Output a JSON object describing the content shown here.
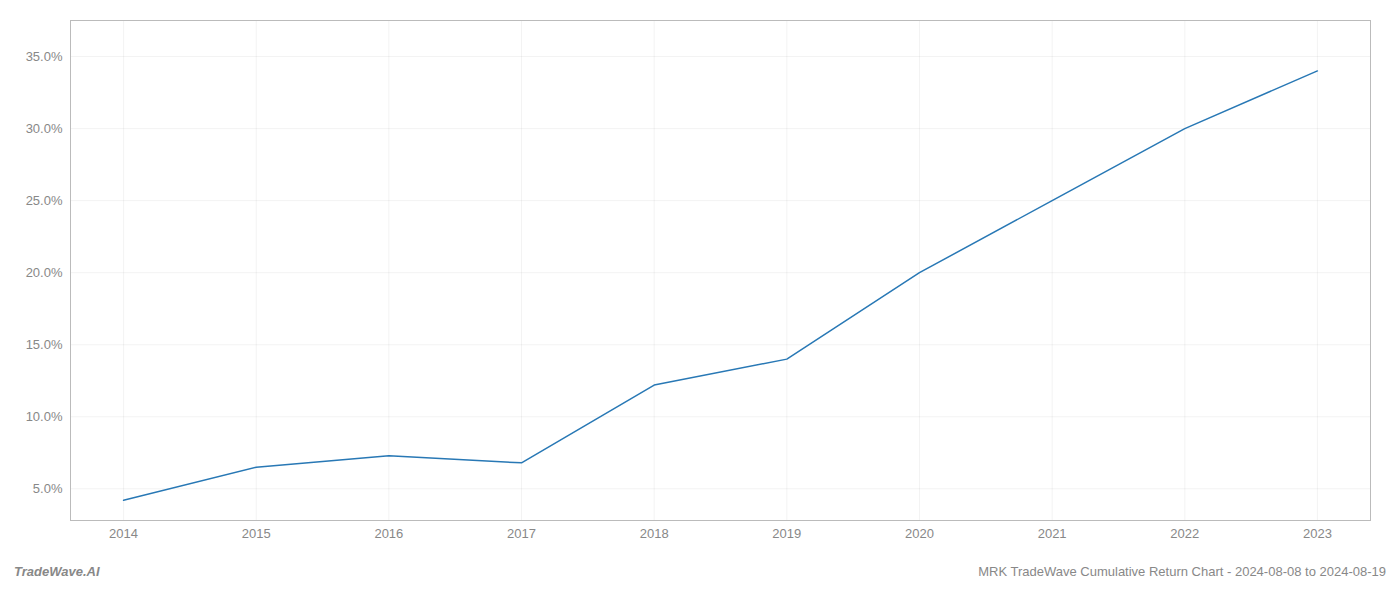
{
  "chart_data": {
    "type": "line",
    "title": "MRK TradeWave Cumulative Return Chart - 2024-08-08 to 2024-08-19",
    "annotations": [
      "TradeWave.AI"
    ],
    "x": [
      2014,
      2015,
      2016,
      2017,
      2018,
      2019,
      2020,
      2021,
      2022,
      2023
    ],
    "values": [
      0.042,
      0.065,
      0.073,
      0.068,
      0.122,
      0.14,
      0.2,
      0.25,
      0.3,
      0.34
    ],
    "color": "#2878b5",
    "xlim": [
      2013.6,
      2023.4
    ],
    "xticks": [
      2014,
      2015,
      2016,
      2017,
      2018,
      2019,
      2020,
      2021,
      2022,
      2023
    ],
    "ylim": [
      0.028,
      0.375
    ],
    "yticks": [
      {
        "value": 0.05,
        "label": "5.0%"
      },
      {
        "value": 0.1,
        "label": "10.0%"
      },
      {
        "value": 0.15,
        "label": "15.0%"
      },
      {
        "value": 0.2,
        "label": "20.0%"
      },
      {
        "value": 0.25,
        "label": "25.0%"
      },
      {
        "value": 0.3,
        "label": "30.0%"
      },
      {
        "value": 0.35,
        "label": "35.0%"
      }
    ],
    "grid": true
  }
}
